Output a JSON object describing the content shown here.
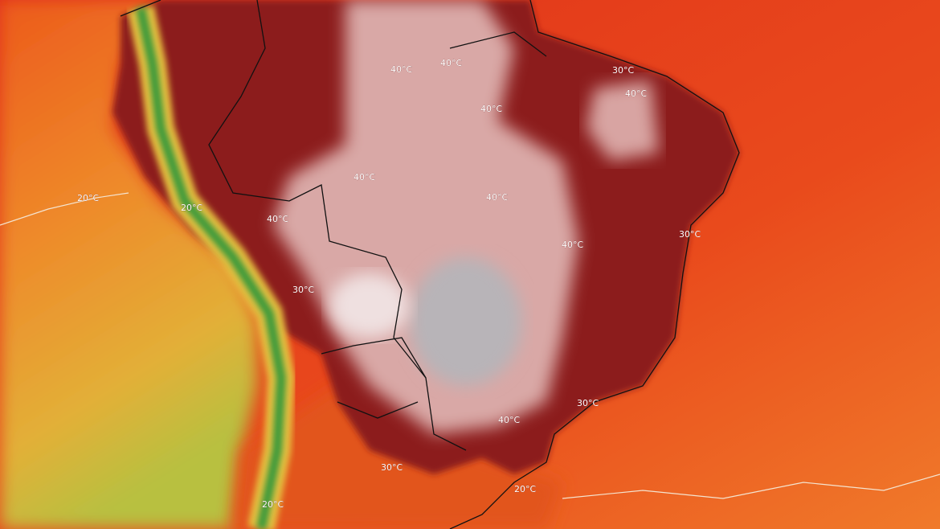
{
  "contour_labels": [
    "30°C",
    "40°C",
    "40°C",
    "40°C",
    "40°C",
    "40°C",
    "40°C",
    "40°C",
    "20°C",
    "20°C",
    "30°C",
    "40°C",
    "30°C",
    "30°C",
    "40°C",
    "30°C",
    "20°C",
    "20°C"
  ]
}
